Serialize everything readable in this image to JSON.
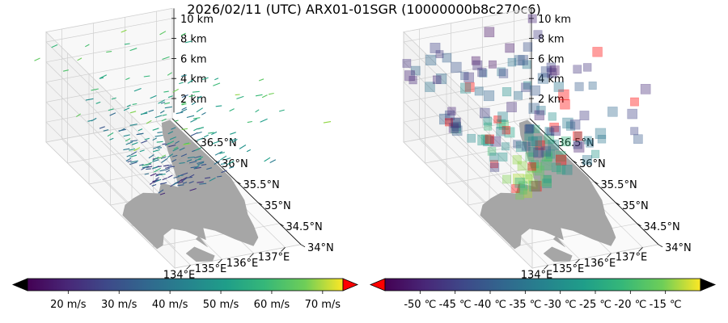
{
  "title": "2026/02/11 (UTC) ARX01-01SGR (10000000b8c270c6)",
  "colors": {
    "land": "#a6a6a6",
    "pane": "#ffffff",
    "grid": "#cfcfcf",
    "over": "#ff0000",
    "under_left": "#000000",
    "under_right": "#ff0000",
    "over_right": "#000000"
  },
  "chart_data": [
    {
      "type": "3d-quiver",
      "panel": "left",
      "x_ticks": [
        "134°E",
        "135°E",
        "136°E",
        "137°E"
      ],
      "y_ticks": [
        "34°N",
        "34.5°N",
        "35°N",
        "35.5°N",
        "36°N",
        "36.5°N"
      ],
      "z_ticks": [
        "2 km",
        "4 km",
        "6 km",
        "8 km",
        "10 km"
      ],
      "xlim": [
        133.5,
        137.5
      ],
      "ylim": [
        34.0,
        37.0
      ],
      "zlim": [
        0,
        11
      ],
      "colormap": "viridis",
      "colorbar": {
        "ticks": [
          "20 m/s",
          "30 m/s",
          "40 m/s",
          "50 m/s",
          "60 m/s",
          "70 m/s"
        ],
        "values": [
          20,
          30,
          40,
          50,
          60,
          70
        ],
        "range": [
          12,
          74
        ],
        "extend": "both"
      }
    },
    {
      "type": "3d-voxel",
      "panel": "right",
      "x_ticks": [
        "134°E",
        "135°E",
        "136°E",
        "137°E"
      ],
      "y_ticks": [
        "34°N",
        "34.5°N",
        "35°N",
        "35.5°N",
        "36°N",
        "36.5°N"
      ],
      "z_ticks": [
        "2 km",
        "4 km",
        "6 km",
        "8 km",
        "10 km"
      ],
      "xlim": [
        133.5,
        137.5
      ],
      "ylim": [
        34.0,
        37.0
      ],
      "zlim": [
        0,
        11
      ],
      "colormap": "viridis",
      "colorbar": {
        "ticks": [
          "-50 ℃",
          "-45 ℃",
          "-40 ℃",
          "-35 ℃",
          "-30 ℃",
          "-25 ℃",
          "-20 ℃",
          "-15 ℃"
        ],
        "values": [
          -50,
          -45,
          -40,
          -35,
          -30,
          -25,
          -20,
          -15
        ],
        "range": [
          -55,
          -10
        ],
        "extend": "both"
      }
    }
  ]
}
